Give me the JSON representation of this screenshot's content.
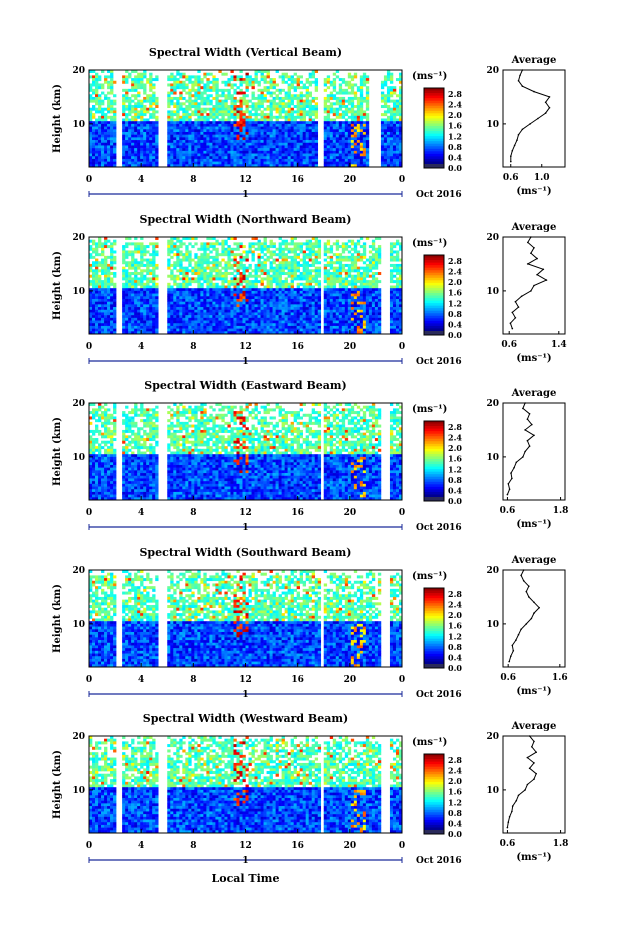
{
  "chart_data": [
    {
      "type": "heatmap",
      "title": "Spectral Width (Vertical Beam)",
      "ylabel": "Height (km)",
      "xlabel": "",
      "x_ticks": [
        "0",
        "4",
        "8",
        "12",
        "16",
        "20",
        "0"
      ],
      "y_ticks": [
        "20",
        "10"
      ],
      "xlim": [
        0,
        24
      ],
      "ylim": [
        2,
        20
      ],
      "date_label": "1",
      "date_suffix": "Oct 2016",
      "colorbar": {
        "unit": "(ms⁻¹)",
        "ticks": [
          "2.8",
          "2.4",
          "2.0",
          "1.6",
          "1.2",
          "0.8",
          "0.4",
          "0.0"
        ],
        "range": [
          0,
          3.0
        ]
      },
      "gaps_hours": [
        [
          2.0,
          2.5
        ],
        [
          5.4,
          6.0
        ],
        [
          17.5,
          17.9
        ],
        [
          21.5,
          22.3
        ]
      ],
      "profile": {
        "title": "Average",
        "xlabel": "(ms⁻¹)",
        "x_ticks": [
          "0.6",
          "1.0"
        ],
        "xlim": [
          0.5,
          1.3
        ],
        "y_ticks": [
          "20",
          "10"
        ],
        "ylim": [
          2,
          20
        ],
        "heights": [
          3,
          4,
          5,
          6,
          7,
          8,
          9,
          10,
          11,
          12,
          13,
          14,
          15,
          16,
          17,
          18,
          19,
          20
        ],
        "values": [
          0.6,
          0.6,
          0.62,
          0.65,
          0.68,
          0.7,
          0.75,
          0.85,
          0.95,
          1.05,
          1.1,
          1.05,
          1.1,
          0.9,
          0.75,
          0.7,
          0.72,
          0.75
        ]
      }
    },
    {
      "type": "heatmap",
      "title": "Spectral Width (Northward Beam)",
      "ylabel": "Height (km)",
      "xlabel": "",
      "x_ticks": [
        "0",
        "4",
        "8",
        "12",
        "16",
        "20",
        "0"
      ],
      "y_ticks": [
        "20",
        "10"
      ],
      "xlim": [
        0,
        24
      ],
      "ylim": [
        2,
        20
      ],
      "date_label": "1",
      "date_suffix": "Oct 2016",
      "colorbar": {
        "unit": "(ms⁻¹)",
        "ticks": [
          "2.8",
          "2.4",
          "2.0",
          "1.6",
          "1.2",
          "0.8",
          "0.4",
          "0.0"
        ],
        "range": [
          0,
          3.0
        ]
      },
      "gaps_hours": [
        [
          2.0,
          2.5
        ],
        [
          5.4,
          6.0
        ],
        [
          17.7,
          18.0
        ],
        [
          22.5,
          23.0
        ]
      ],
      "profile": {
        "title": "Average",
        "xlabel": "(ms⁻¹)",
        "x_ticks": [
          "0.6",
          "1.4"
        ],
        "xlim": [
          0.5,
          1.5
        ],
        "y_ticks": [
          "20",
          "10"
        ],
        "ylim": [
          2,
          20
        ],
        "heights": [
          3,
          4,
          5,
          6,
          7,
          8,
          9,
          10,
          11,
          12,
          13,
          14,
          15,
          16,
          17,
          18,
          19,
          20
        ],
        "values": [
          0.65,
          0.62,
          0.7,
          0.65,
          0.75,
          0.7,
          0.8,
          0.95,
          1.0,
          1.2,
          1.05,
          1.15,
          0.9,
          1.05,
          0.95,
          1.0,
          0.9,
          0.95
        ]
      }
    },
    {
      "type": "heatmap",
      "title": "Spectral Width (Eastward Beam)",
      "ylabel": "Height (km)",
      "xlabel": "",
      "x_ticks": [
        "0",
        "4",
        "8",
        "12",
        "16",
        "20",
        "0"
      ],
      "y_ticks": [
        "20",
        "10"
      ],
      "xlim": [
        0,
        24
      ],
      "ylim": [
        2,
        20
      ],
      "date_label": "1",
      "date_suffix": "Oct 2016",
      "colorbar": {
        "unit": "(ms⁻¹)",
        "ticks": [
          "2.8",
          "2.4",
          "2.0",
          "1.6",
          "1.2",
          "0.8",
          "0.4",
          "0.0"
        ],
        "range": [
          0,
          3.0
        ]
      },
      "gaps_hours": [
        [
          2.0,
          2.5
        ],
        [
          5.4,
          6.0
        ],
        [
          17.7,
          18.0
        ],
        [
          22.5,
          23.0
        ]
      ],
      "profile": {
        "title": "Average",
        "xlabel": "(ms⁻¹)",
        "x_ticks": [
          "0.6",
          "1.8"
        ],
        "xlim": [
          0.5,
          1.9
        ],
        "y_ticks": [
          "20",
          "10"
        ],
        "ylim": [
          2,
          20
        ],
        "heights": [
          3,
          4,
          5,
          6,
          7,
          8,
          9,
          10,
          11,
          12,
          13,
          14,
          15,
          16,
          17,
          18,
          19,
          20
        ],
        "values": [
          0.6,
          0.65,
          0.62,
          0.7,
          0.68,
          0.75,
          0.8,
          0.95,
          1.0,
          1.1,
          1.05,
          1.2,
          1.0,
          1.15,
          1.05,
          1.1,
          0.95,
          1.0
        ]
      }
    },
    {
      "type": "heatmap",
      "title": "Spectral Width (Southward Beam)",
      "ylabel": "Height (km)",
      "xlabel": "",
      "x_ticks": [
        "0",
        "4",
        "8",
        "12",
        "16",
        "20",
        "0"
      ],
      "y_ticks": [
        "20",
        "10"
      ],
      "xlim": [
        0,
        24
      ],
      "ylim": [
        2,
        20
      ],
      "date_label": "1",
      "date_suffix": "Oct 2016",
      "colorbar": {
        "unit": "(ms⁻¹)",
        "ticks": [
          "2.8",
          "2.4",
          "2.0",
          "1.6",
          "1.2",
          "0.8",
          "0.4",
          "0.0"
        ],
        "range": [
          0,
          3.0
        ]
      },
      "gaps_hours": [
        [
          2.0,
          2.5
        ],
        [
          5.4,
          6.0
        ],
        [
          17.7,
          18.0
        ],
        [
          22.5,
          23.0
        ]
      ],
      "profile": {
        "title": "Average",
        "xlabel": "(ms⁻¹)",
        "x_ticks": [
          "0.6",
          "1.6"
        ],
        "xlim": [
          0.5,
          1.7
        ],
        "y_ticks": [
          "20",
          "10"
        ],
        "ylim": [
          2,
          20
        ],
        "heights": [
          3,
          4,
          5,
          6,
          7,
          8,
          9,
          10,
          11,
          12,
          13,
          14,
          15,
          16,
          17,
          18,
          19,
          20
        ],
        "values": [
          0.62,
          0.65,
          0.7,
          0.68,
          0.75,
          0.8,
          0.85,
          0.95,
          1.05,
          1.1,
          1.2,
          1.1,
          1.0,
          0.95,
          1.0,
          0.9,
          0.85,
          0.9
        ]
      }
    },
    {
      "type": "heatmap",
      "title": "Spectral Width (Westward Beam)",
      "ylabel": "Height (km)",
      "xlabel": "Local Time",
      "x_ticks": [
        "0",
        "4",
        "8",
        "12",
        "16",
        "20",
        "0"
      ],
      "y_ticks": [
        "20",
        "10"
      ],
      "xlim": [
        0,
        24
      ],
      "ylim": [
        2,
        20
      ],
      "date_label": "1",
      "date_suffix": "Oct 2016",
      "colorbar": {
        "unit": "(ms⁻¹)",
        "ticks": [
          "2.8",
          "2.4",
          "2.0",
          "1.6",
          "1.2",
          "0.8",
          "0.4",
          "0.0"
        ],
        "range": [
          0,
          3.0
        ]
      },
      "gaps_hours": [
        [
          2.0,
          2.5
        ],
        [
          5.4,
          6.0
        ],
        [
          17.7,
          18.0
        ],
        [
          22.5,
          23.0
        ]
      ],
      "profile": {
        "title": "Average",
        "xlabel": "(ms⁻¹)",
        "x_ticks": [
          "0.6",
          "1.8"
        ],
        "xlim": [
          0.5,
          1.9
        ],
        "y_ticks": [
          "20",
          "10"
        ],
        "ylim": [
          2,
          20
        ],
        "heights": [
          3,
          4,
          5,
          6,
          7,
          8,
          9,
          10,
          11,
          12,
          13,
          14,
          15,
          16,
          17,
          18,
          19,
          20
        ],
        "values": [
          0.6,
          0.62,
          0.65,
          0.7,
          0.72,
          0.8,
          0.85,
          1.0,
          1.05,
          1.2,
          1.25,
          1.1,
          1.2,
          1.05,
          1.25,
          1.15,
          1.2,
          1.1
        ]
      }
    }
  ]
}
